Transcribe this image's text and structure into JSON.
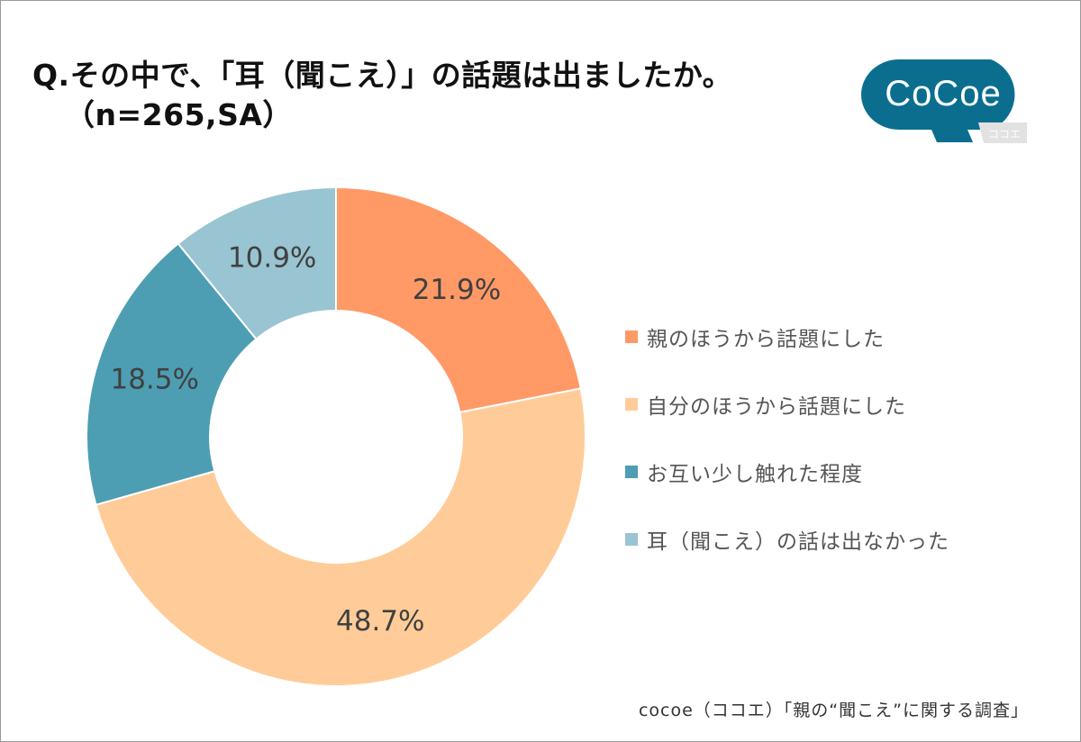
{
  "title": {
    "line1": "Q.その中で、「耳（聞こえ）」の話題は出ましたか。",
    "line2": "（n=265,SA）"
  },
  "logo": {
    "text": "CoCoe",
    "subtext": "ココエ"
  },
  "chart_data": {
    "type": "pie",
    "style": "donut",
    "categories": [
      "親のほうから話題にした",
      "自分のほうから話題にした",
      "お互い少し触れた程度",
      "耳（聞こえ）の話は出なかった"
    ],
    "values": [
      21.9,
      48.7,
      18.5,
      10.9
    ],
    "labels": [
      "21.9%",
      "48.7%",
      "18.5%",
      "10.9%"
    ],
    "colors": [
      "#ff9966",
      "#ffcc99",
      "#4d9eb3",
      "#99c4d1"
    ],
    "legend_position": "right"
  },
  "footer": "cocoe（ココエ）「親の“聞こえ”に関する調査」"
}
